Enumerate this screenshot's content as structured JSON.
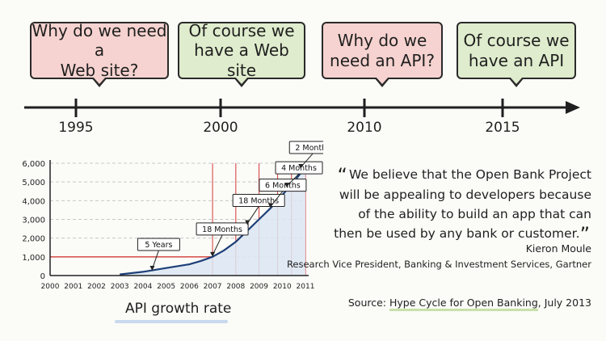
{
  "timeline": {
    "bubbles": [
      {
        "text": "Why do we need a\nWeb site?",
        "color": "#f6d3d0"
      },
      {
        "text": "Of course we\nhave a Web site",
        "color": "#dfeccd"
      },
      {
        "text": "Why do we\nneed an API?",
        "color": "#f6d3d0"
      },
      {
        "text": "Of course we\nhave an API",
        "color": "#dfeccd"
      }
    ],
    "years": [
      "1995",
      "2000",
      "2010",
      "2015"
    ]
  },
  "chart_data": {
    "type": "line",
    "x_ticks": [
      "2000",
      "2001",
      "2002",
      "2003",
      "2004",
      "2005",
      "2006",
      "2007",
      "2008",
      "2009",
      "2010",
      "2011"
    ],
    "y_ticks": [
      "0",
      "1,000",
      "2,000",
      "3,000",
      "4,000",
      "5,000",
      "6,000"
    ],
    "ylim": [
      0,
      6000
    ],
    "xlim": [
      2000,
      2011
    ],
    "grid": true,
    "series": [
      {
        "x": [
          2003,
          2004,
          2005,
          2006,
          2006.5,
          2007,
          2007.5,
          2008,
          2008.5,
          2009,
          2009.5,
          2010,
          2010.5,
          2011
        ],
        "y": [
          60,
          200,
          400,
          600,
          780,
          1000,
          1350,
          1800,
          2400,
          3000,
          3600,
          4300,
          5000,
          5800
        ]
      }
    ],
    "annotations": [
      {
        "label": "5 Years",
        "x": 2004.4,
        "y": 260
      },
      {
        "label": "18 Months",
        "x": 2007,
        "y": 1000
      },
      {
        "label": "18 Months",
        "x": 2008.5,
        "y": 2700
      },
      {
        "label": "6 Months",
        "x": 2009.5,
        "y": 3600
      },
      {
        "label": "4 Months",
        "x": 2010.2,
        "y": 4700
      },
      {
        "label": "2 Months",
        "x": 2010.8,
        "y": 5700
      }
    ],
    "reference_line_y": 1000,
    "vertical_lines_x": [
      2007,
      2008,
      2009,
      2009.8,
      2010.4,
      2011
    ]
  },
  "chart_caption": "API growth rate",
  "quote": {
    "text": "We believe that the Open Bank Project will be appealing to developers because of the ability to build an app that can then be used by any bank or customer.",
    "open_mark": "“",
    "close_mark": "”",
    "author": "Kieron Moule",
    "author_title": "Research Vice President, Banking & Investment Services, Gartner"
  },
  "source": {
    "label": "Source:",
    "link": "Hype Cycle for Open Banking",
    "date": ", July 2013"
  }
}
